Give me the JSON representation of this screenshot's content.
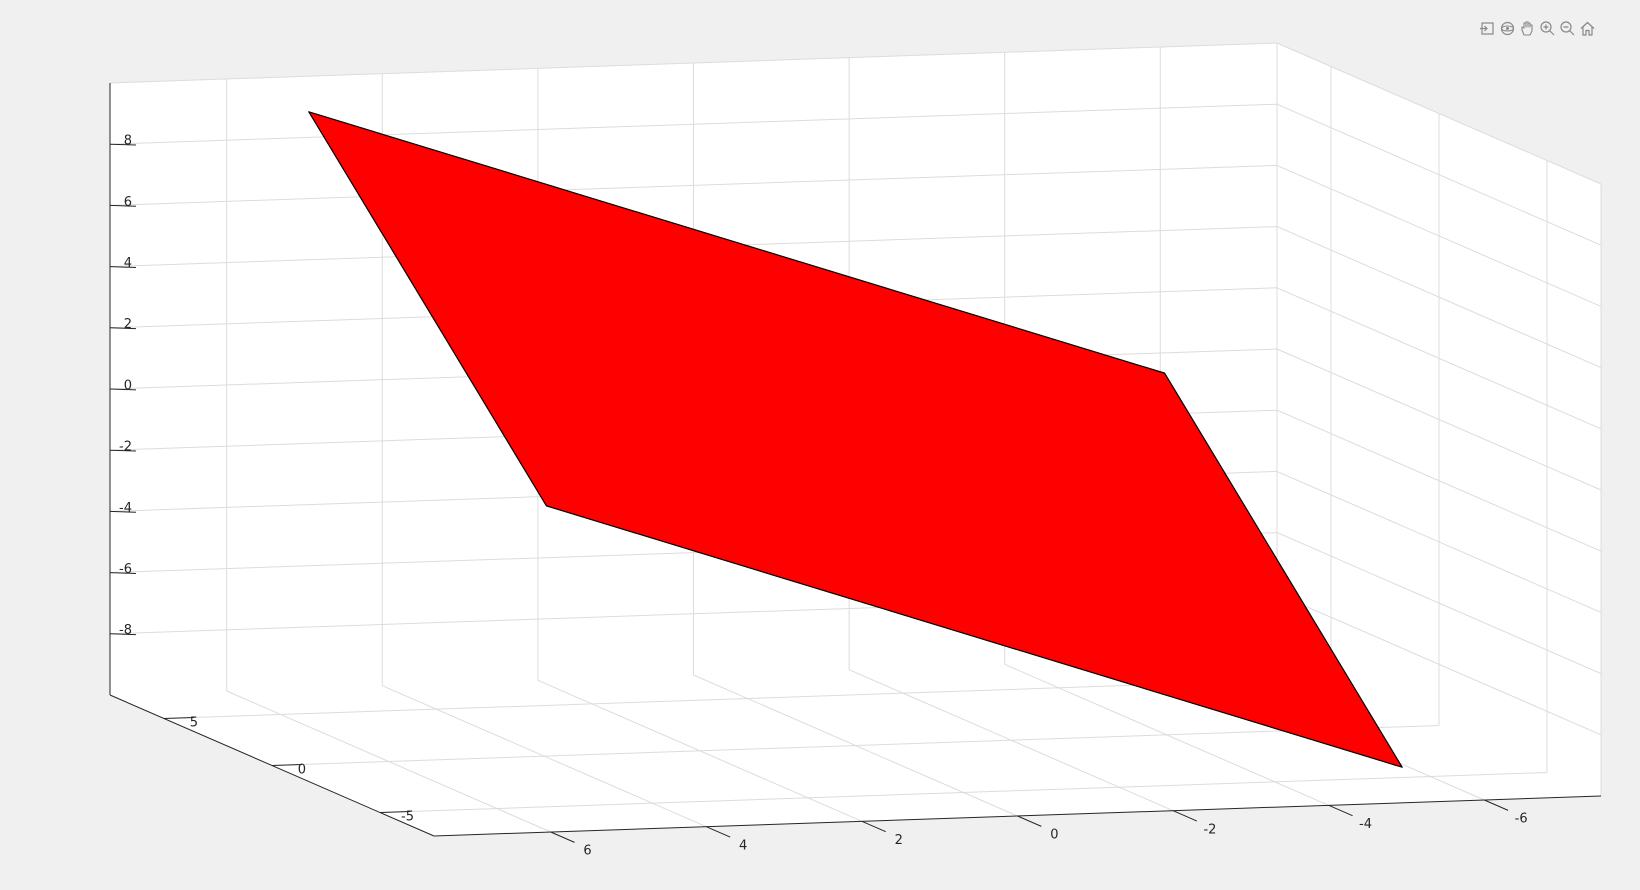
{
  "toolbar": {
    "items": [
      {
        "name": "export-icon"
      },
      {
        "name": "rotate-3d-icon"
      },
      {
        "name": "pan-hand-icon"
      },
      {
        "name": "zoom-in-icon"
      },
      {
        "name": "zoom-out-icon"
      },
      {
        "name": "home-icon"
      }
    ]
  },
  "chart_data": {
    "type": "surface",
    "x_ticks": [
      6,
      4,
      2,
      0,
      -2,
      -4,
      -6
    ],
    "y_ticks": [
      5,
      0,
      -5
    ],
    "z_ticks": [
      8,
      6,
      4,
      2,
      0,
      -2,
      -4,
      -6,
      -8
    ],
    "xlim": [
      -7.5,
      7.5
    ],
    "ylim": [
      -7.5,
      7.5
    ],
    "zlim": [
      -10,
      10
    ],
    "grid": true,
    "surface_color": "#ff0000",
    "edge_color": "#000000",
    "surface_corners": [
      {
        "x": 5.5,
        "y": 5.5,
        "z": 9.5
      },
      {
        "x": -5.5,
        "y": 5.5,
        "z": 0
      },
      {
        "x": -5.5,
        "y": -5.5,
        "z": -9.5
      },
      {
        "x": 5.5,
        "y": -5.5,
        "z": 0
      }
    ]
  }
}
